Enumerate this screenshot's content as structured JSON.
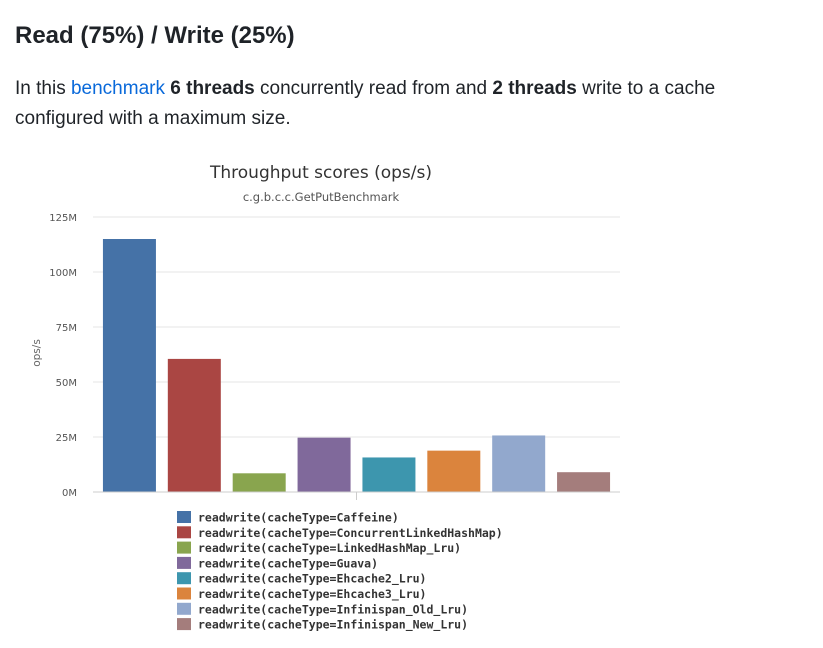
{
  "heading": "Read (75%) / Write (25%)",
  "intro": {
    "text_1": "In this ",
    "link": "benchmark",
    "text_2": " ",
    "bold_1": "6 threads",
    "text_3": " concurrently read from and ",
    "bold_2": "2 threads",
    "text_4": " write to a cache configured with a maximum size."
  },
  "colors": {
    "link": "#0969da",
    "grid": "#e6e6e6",
    "axis": "#cccccc"
  },
  "chart_data": {
    "type": "bar",
    "title": "Throughput scores (ops/s)",
    "subtitle": "c.g.b.c.c.GetPutBenchmark",
    "ylabel": "ops/s",
    "xlabel": "",
    "ylim": [
      0,
      125000000
    ],
    "yticks": [
      {
        "value": 0,
        "label": "0M"
      },
      {
        "value": 25000000,
        "label": "25M"
      },
      {
        "value": 50000000,
        "label": "50M"
      },
      {
        "value": 75000000,
        "label": "75M"
      },
      {
        "value": 100000000,
        "label": "100M"
      },
      {
        "value": 125000000,
        "label": "125M"
      }
    ],
    "grid": true,
    "legend_position": "bottom",
    "series": [
      {
        "name": "readwrite(cacheType=Caffeine)",
        "value": 115000000,
        "color": "#4572a7"
      },
      {
        "name": "readwrite(cacheType=ConcurrentLinkedHashMap)",
        "value": 60500000,
        "color": "#aa4643"
      },
      {
        "name": "readwrite(cacheType=LinkedHashMap_Lru)",
        "value": 8500000,
        "color": "#89a54e"
      },
      {
        "name": "readwrite(cacheType=Guava)",
        "value": 24700000,
        "color": "#80699b"
      },
      {
        "name": "readwrite(cacheType=Ehcache2_Lru)",
        "value": 15700000,
        "color": "#3d96ae"
      },
      {
        "name": "readwrite(cacheType=Ehcache3_Lru)",
        "value": 18800000,
        "color": "#db843d"
      },
      {
        "name": "readwrite(cacheType=Infinispan_Old_Lru)",
        "value": 25700000,
        "color": "#92a8cd"
      },
      {
        "name": "readwrite(cacheType=Infinispan_New_Lru)",
        "value": 9000000,
        "color": "#a47d7c"
      }
    ]
  }
}
